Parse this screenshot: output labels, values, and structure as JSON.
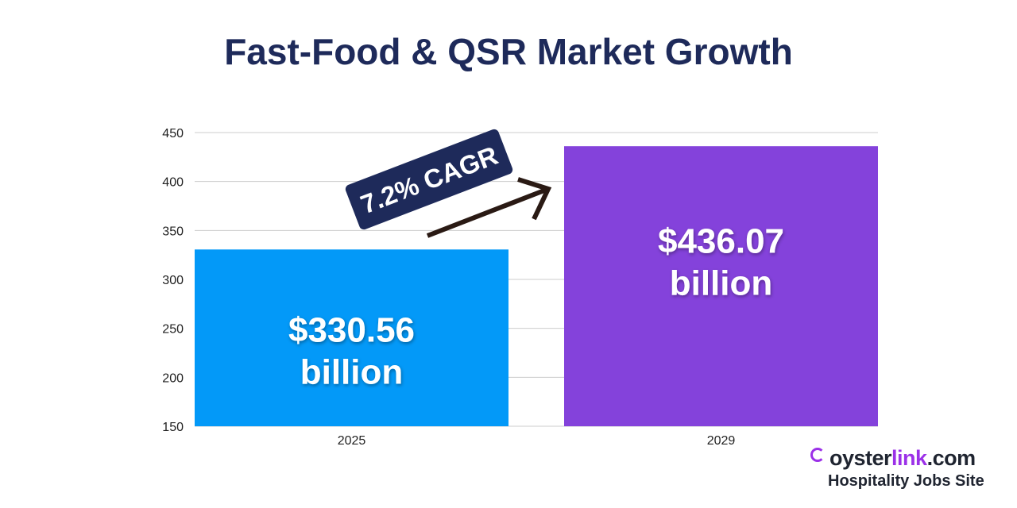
{
  "chart_data": {
    "type": "bar",
    "title": "Fast-Food & QSR Market Growth",
    "categories": [
      "2025",
      "2029"
    ],
    "values": [
      330.56,
      436.07
    ],
    "data_labels": [
      [
        "$330.56",
        "billion"
      ],
      [
        "$436.07",
        "billion"
      ]
    ],
    "colors": [
      "#0399f8",
      "#8442db"
    ],
    "ylim": [
      150,
      450
    ],
    "yticks": [
      150,
      200,
      250,
      300,
      350,
      400,
      450
    ],
    "grid": true,
    "xlabel": "",
    "ylabel": "",
    "annotation": "7.2% CAGR"
  },
  "logo": {
    "brand_main": "oyster",
    "brand_highlight": "link",
    "brand_suffix": ".com",
    "tagline": "Hospitality Jobs Site"
  },
  "colors": {
    "title": "#1e2a5a",
    "badge": "#1e2a5a",
    "arrow": "#2a1a14"
  }
}
